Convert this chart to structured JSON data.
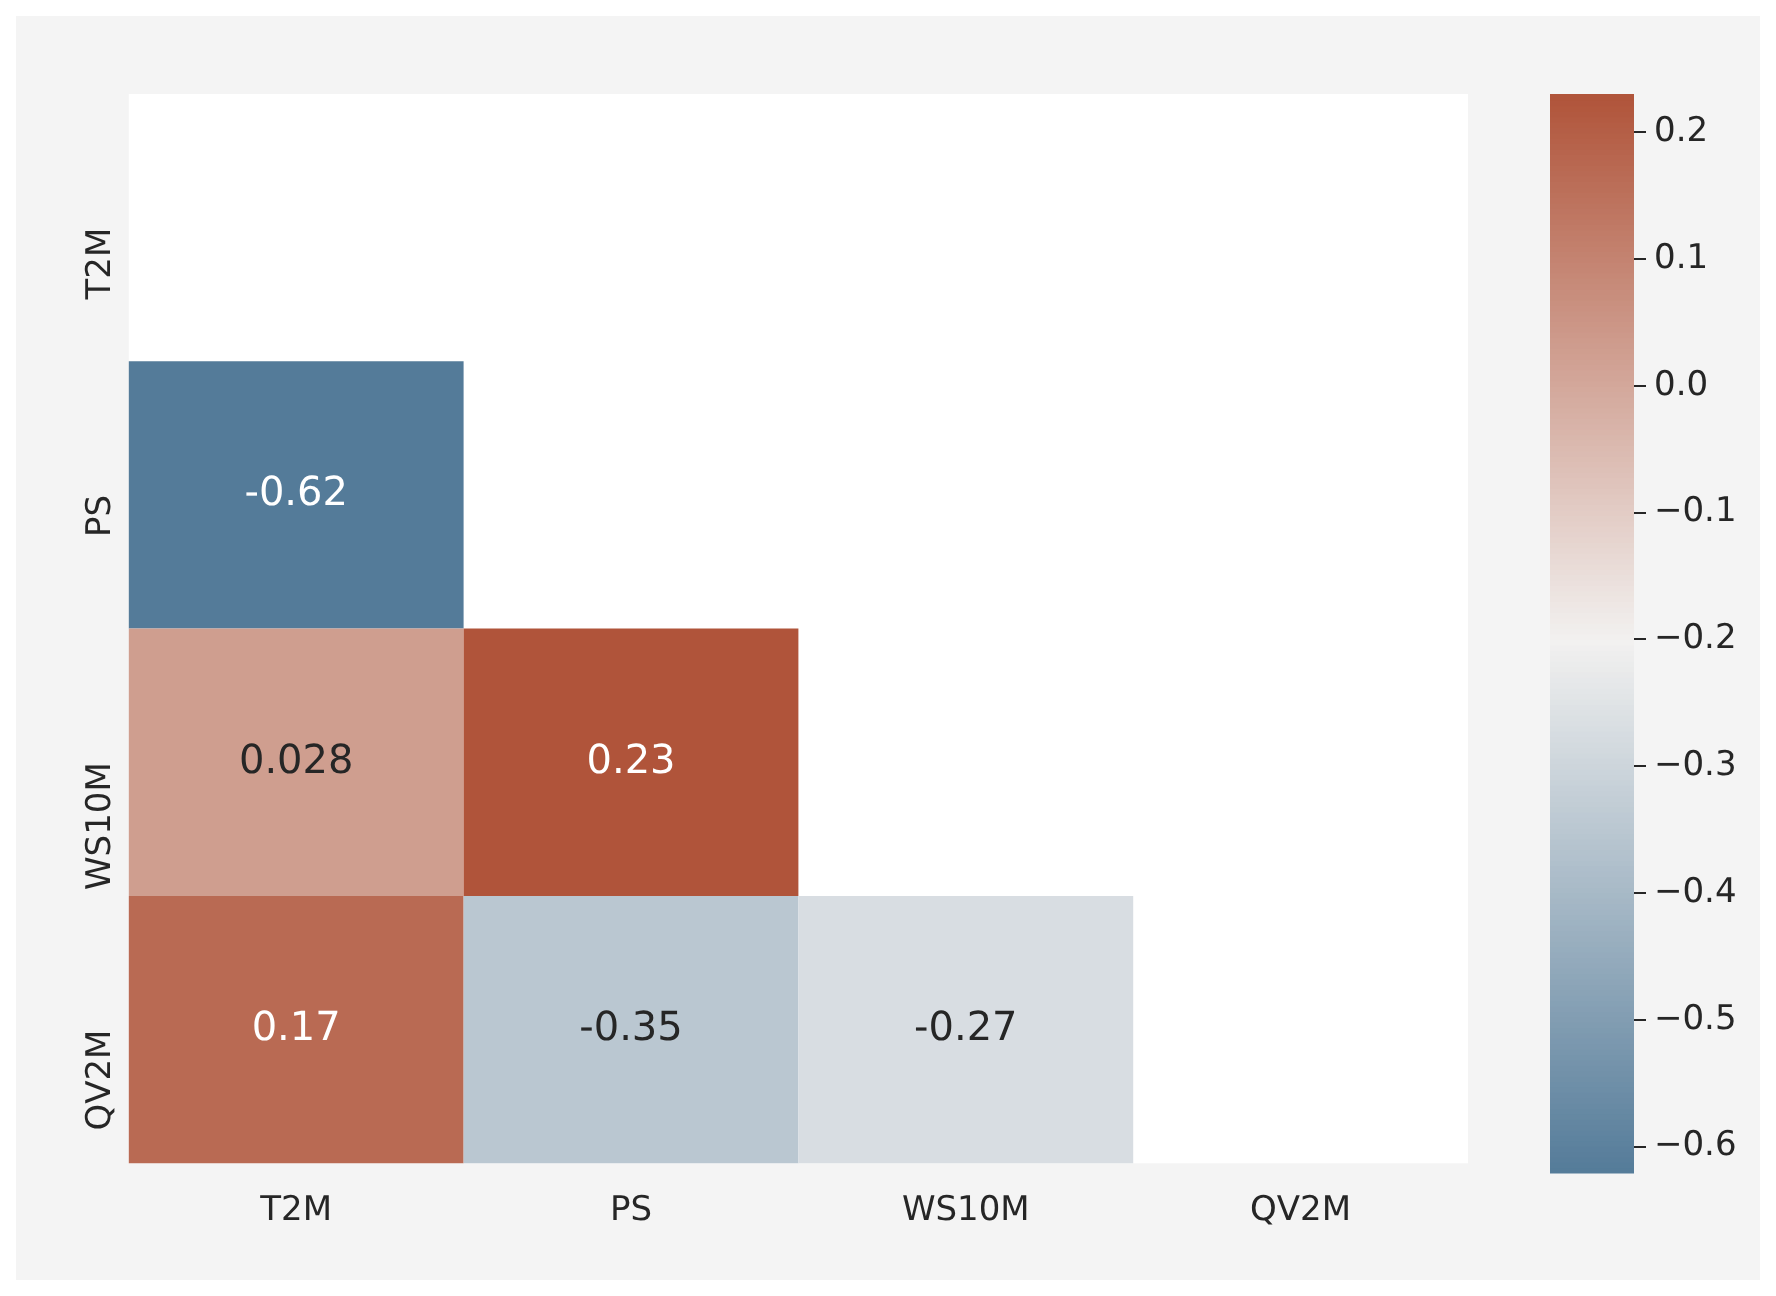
{
  "chart_data": {
    "type": "heatmap",
    "categories": [
      "T2M",
      "PS",
      "WS10M",
      "QV2M"
    ],
    "y_categories": [
      "T2M",
      "PS",
      "WS10M",
      "QV2M"
    ],
    "cells": [
      [
        null,
        null,
        null,
        null
      ],
      [
        -0.62,
        null,
        null,
        null
      ],
      [
        0.028,
        0.23,
        null,
        null
      ],
      [
        0.17,
        -0.35,
        -0.27,
        null
      ]
    ],
    "clim": [
      -0.62,
      0.23
    ],
    "cticks": [
      -0.6,
      -0.5,
      -0.4,
      -0.3,
      -0.2,
      -0.1,
      {
        "value": 0,
        "label": "0.0"
      },
      0.1,
      0.2
    ],
    "data_labels": true
  }
}
